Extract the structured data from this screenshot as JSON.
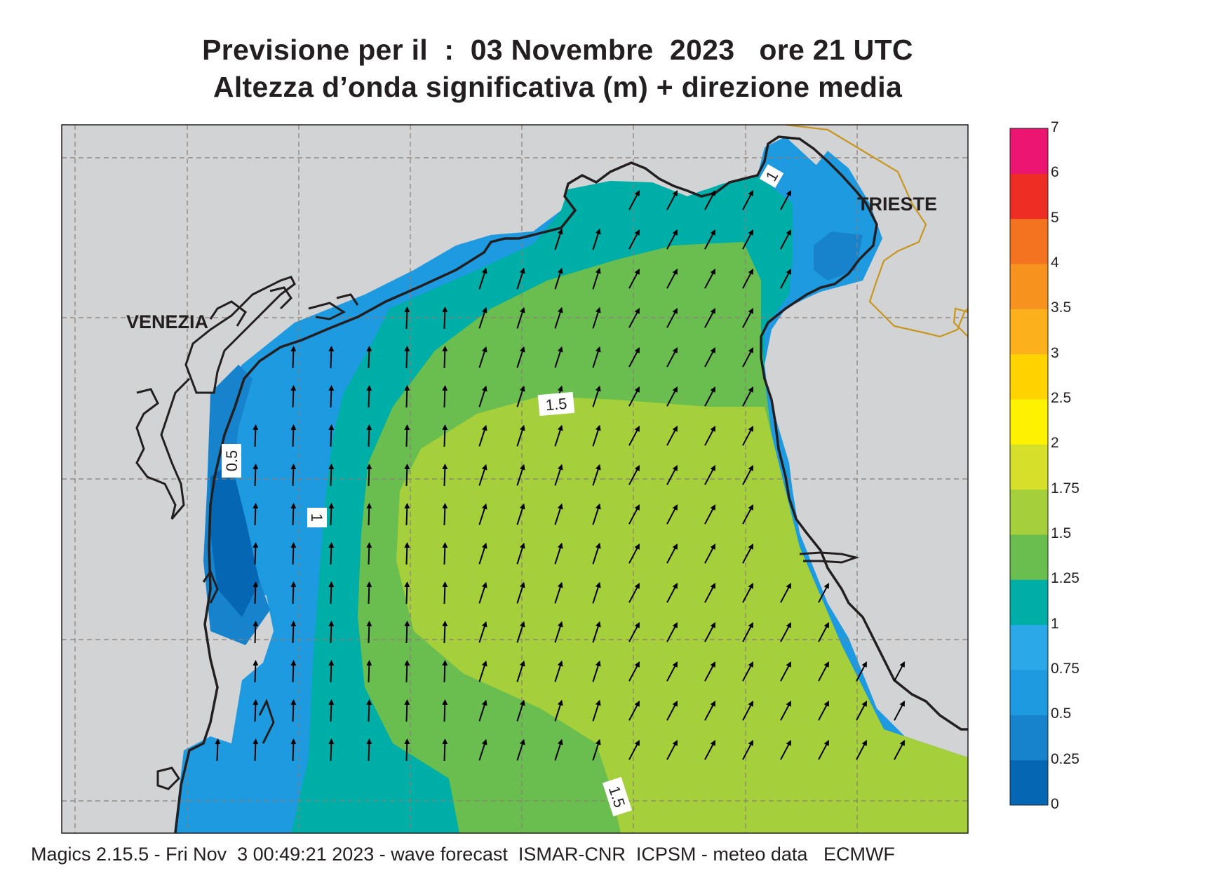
{
  "title_line1": "Previsione per il  :  03 Novembre  2023   ore 21 UTC",
  "title_line2": "Altezza d’onda significativa (m) + direzione media",
  "cities": {
    "venezia": "VENEZIA",
    "trieste": "TRIESTE"
  },
  "contour_labels": {
    "c05": "0.5",
    "c1_west": "1",
    "c1_ne": "1",
    "c15_mid": "1.5",
    "c15_south": "1.5"
  },
  "colorbar": {
    "labels": [
      "0",
      "0.25",
      "0.5",
      "0.75",
      "1",
      "1.25",
      "1.5",
      "1.75",
      "2",
      "2.5",
      "3",
      "3.5",
      "4",
      "5",
      "6",
      "7"
    ],
    "colors": [
      "#0567b3",
      "#1683cc",
      "#1e9ae0",
      "#2aa8e8",
      "#00aea8",
      "#6abe4f",
      "#a6cf3c",
      "#d6e02a",
      "#fff200",
      "#ffd200",
      "#fbb01c",
      "#f7921e",
      "#f47321",
      "#ee2d24",
      "#ec1572"
    ]
  },
  "colors": {
    "land": "#d1d3d4",
    "coast": "#231f20",
    "border": "#c8961e",
    "grid": "#8a7e78"
  },
  "footer": "Magics 2.15.5 - Fri Nov  3 00:49:21 2023 - wave forecast  ISMAR-CNR  ICPSM - meteo data   ECMWF"
}
